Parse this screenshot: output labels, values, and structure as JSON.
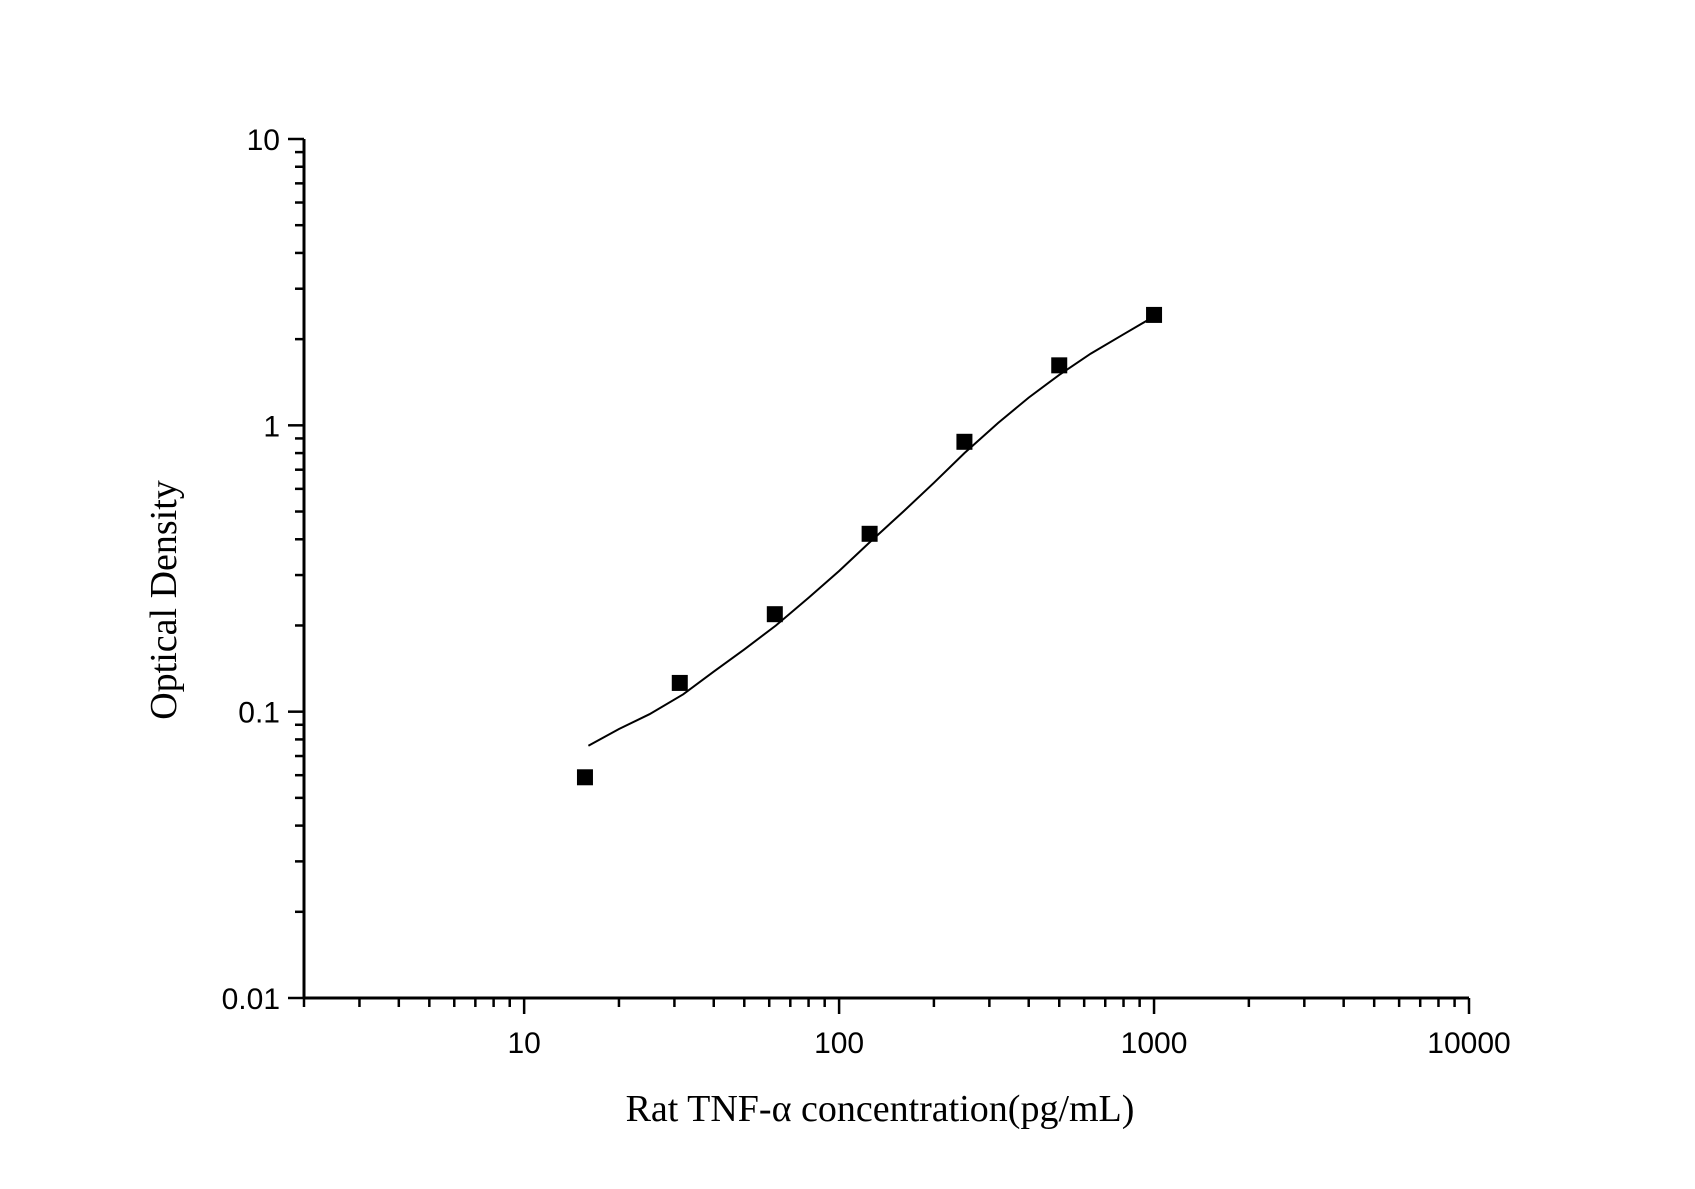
{
  "chart_data": {
    "type": "scatter",
    "xlabel": "Rat TNF-α  concentration(pg/mL)",
    "ylabel": "Optical Density",
    "x_scale": "log",
    "y_scale": "log",
    "xlim": [
      2,
      10000
    ],
    "ylim": [
      0.01,
      10
    ],
    "x_ticks": [
      "10",
      "100",
      "1000",
      "10000"
    ],
    "y_ticks": [
      "0.01",
      "0.1",
      "1",
      "10"
    ],
    "grid": false,
    "series": [
      {
        "marker": "square",
        "color": "#000000",
        "x": [
          15.6,
          31.2,
          62.5,
          125,
          250,
          500,
          1000
        ],
        "y": [
          0.059,
          0.126,
          0.219,
          0.418,
          0.876,
          1.62,
          2.43
        ]
      }
    ],
    "fit_curve": {
      "color": "#000000",
      "x": [
        16,
        20,
        25,
        32,
        40,
        50,
        63,
        80,
        100,
        125,
        160,
        200,
        250,
        320,
        400,
        500,
        630,
        800,
        1000
      ],
      "y": [
        0.076,
        0.087,
        0.098,
        0.115,
        0.138,
        0.165,
        0.2,
        0.25,
        0.31,
        0.39,
        0.5,
        0.63,
        0.8,
        1.02,
        1.25,
        1.5,
        1.78,
        2.08,
        2.4
      ]
    }
  }
}
